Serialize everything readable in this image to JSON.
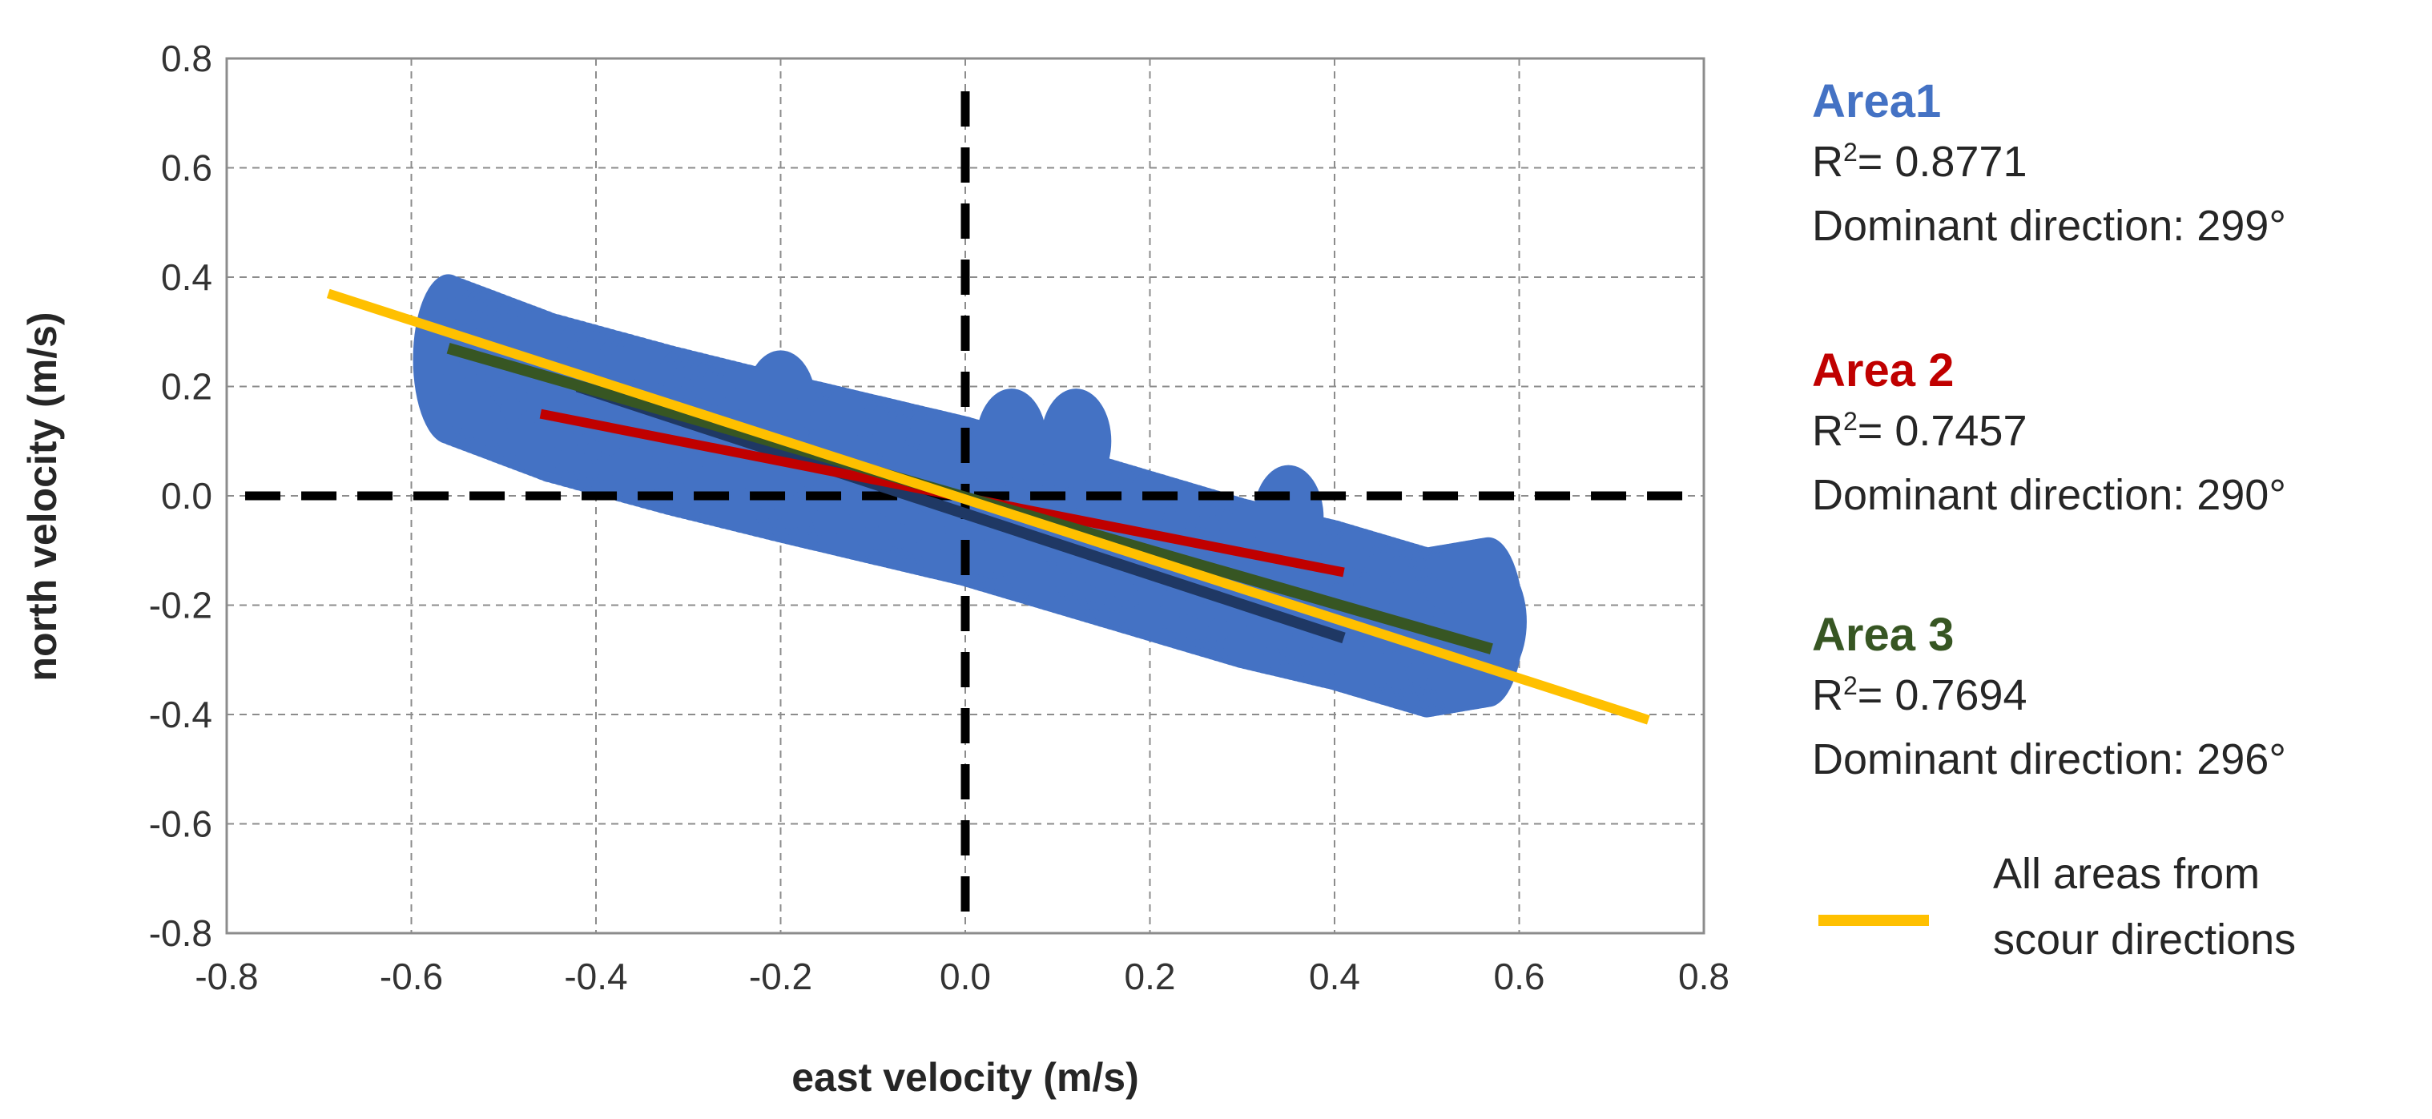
{
  "chart_data": {
    "type": "scatter",
    "title": "",
    "xlabel": "east velocity (m/s)",
    "ylabel": "north velocity (m/s)",
    "xlim": [
      -0.8,
      0.8
    ],
    "ylim": [
      -0.8,
      0.8
    ],
    "xticks": [
      "-0.8",
      "-0.6",
      "-0.4",
      "-0.2",
      "0.0",
      "0.2",
      "0.4",
      "0.6",
      "0.8"
    ],
    "yticks": [
      "0.8",
      "0.6",
      "0.4",
      "0.2",
      "0.0",
      "-0.2",
      "-0.4",
      "-0.6",
      "-0.8"
    ],
    "grid": true,
    "point_color": "#4472C4",
    "cloud": {
      "spine": [
        [
          -0.56,
          0.25
        ],
        [
          -0.45,
          0.18
        ],
        [
          -0.32,
          0.12
        ],
        [
          -0.2,
          0.07
        ],
        [
          -0.1,
          0.03
        ],
        [
          0.0,
          -0.01
        ],
        [
          0.1,
          -0.06
        ],
        [
          0.2,
          -0.11
        ],
        [
          0.3,
          -0.16
        ],
        [
          0.4,
          -0.2
        ],
        [
          0.5,
          -0.25
        ],
        [
          0.57,
          -0.23
        ]
      ],
      "bulges": [
        [
          -0.2,
          0.17
        ],
        [
          0.05,
          0.1
        ],
        [
          0.12,
          0.1
        ],
        [
          0.35,
          -0.04
        ],
        [
          0.55,
          -0.19
        ]
      ]
    },
    "series": [
      {
        "name": "Area1",
        "color": "#1F3864",
        "x": [
          -0.42,
          0.41
        ],
        "y": [
          0.2,
          -0.26
        ]
      },
      {
        "name": "Area 2",
        "color": "#C00000",
        "x": [
          -0.46,
          0.41
        ],
        "y": [
          0.15,
          -0.14
        ]
      },
      {
        "name": "Area 3",
        "color": "#375623",
        "x": [
          -0.56,
          0.57
        ],
        "y": [
          0.27,
          -0.28
        ]
      },
      {
        "name": "All areas from scour directions",
        "color": "#FFC000",
        "x": [
          -0.69,
          0.74
        ],
        "y": [
          0.37,
          -0.41
        ]
      }
    ],
    "reference_lines": {
      "x_zero": 0.0,
      "y_zero": 0.0,
      "style": "dashed",
      "color": "#000000"
    },
    "legend": {
      "position": "right",
      "areas": [
        {
          "title": "Area1",
          "color": "#4472C4",
          "r2_prefix": "R",
          "r2_sup": "2",
          "r2_value": "= 0.8771",
          "direction": "Dominant direction: 299°"
        },
        {
          "title": "Area 2",
          "color": "#C00000",
          "r2_prefix": "R",
          "r2_sup": "2",
          "r2_value": "= 0.7457",
          "direction": "Dominant direction: 290°"
        },
        {
          "title": "Area 3",
          "color": "#375623",
          "r2_prefix": "R",
          "r2_sup": "2",
          "r2_value": "= 0.7694",
          "direction": "Dominant direction: 296°"
        }
      ],
      "all_areas": {
        "line1": "All areas from",
        "line2": "scour directions",
        "color": "#FFC000"
      }
    }
  }
}
